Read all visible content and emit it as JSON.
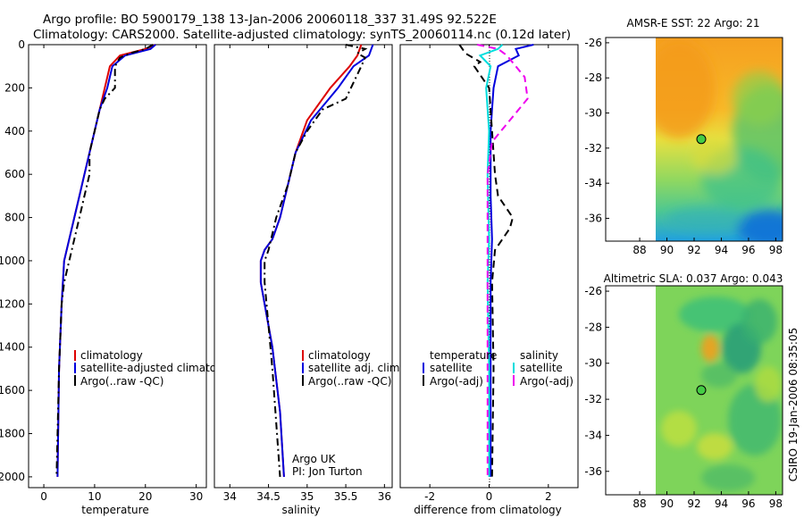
{
  "header": {
    "line1": "Argo profile: BO 5900179_138 13-Jan-2006 20060118_337 31.49S 92.522E",
    "line2": "Climatology: CARS2000. Satellite-adjusted climatology: synTS_20060114.nc (0.12d later)"
  },
  "side_label": "CSIRO 19-Jan-2006 08:35:05",
  "colors": {
    "red": "#dd0000",
    "blue": "#0000dd",
    "black": "#000000",
    "cyan": "#00dddd",
    "magenta": "#ee00ee"
  },
  "chart_data": [
    {
      "type": "line",
      "name": "temperature-panel",
      "xlabel": "temperature",
      "xlim": [
        -3,
        32
      ],
      "ylim": [
        2050,
        0
      ],
      "xticks": [
        0,
        10,
        20,
        30
      ],
      "yticks": [
        0,
        200,
        400,
        600,
        800,
        1000,
        1200,
        1400,
        1600,
        1800,
        2000
      ],
      "legend": [
        "climatology",
        "satellite-adjusted climatolog",
        "Argo(..raw -QC)"
      ],
      "series": [
        {
          "name": "climatology",
          "color": "red",
          "dash": "",
          "x": [
            22,
            20,
            15,
            13,
            12,
            11,
            10,
            9,
            8,
            7,
            6,
            5,
            4,
            3.5,
            3,
            2.7
          ],
          "y": [
            0,
            20,
            50,
            100,
            200,
            300,
            400,
            500,
            600,
            700,
            800,
            900,
            1000,
            1200,
            1500,
            2000
          ]
        },
        {
          "name": "satellite-adjusted climatolog",
          "color": "blue",
          "dash": "",
          "x": [
            22,
            21,
            16,
            13.5,
            12.5,
            11,
            10,
            9,
            8,
            7,
            6,
            5,
            4,
            3.5,
            3,
            2.7
          ],
          "y": [
            0,
            20,
            50,
            100,
            200,
            300,
            400,
            500,
            600,
            700,
            800,
            900,
            1000,
            1200,
            1500,
            2000
          ]
        },
        {
          "name": "Argo(..raw -QC)",
          "color": "black",
          "dash": "8,4,2,4",
          "x": [
            21.5,
            20,
            17,
            15,
            14,
            14,
            12,
            11,
            10,
            9,
            9,
            8,
            7,
            6,
            5,
            4,
            3.5,
            3,
            2.5
          ],
          "y": [
            0,
            20,
            40,
            60,
            100,
            200,
            250,
            300,
            400,
            500,
            600,
            700,
            800,
            900,
            1000,
            1100,
            1200,
            1500,
            2000
          ]
        }
      ]
    },
    {
      "type": "line",
      "name": "salinity-panel",
      "xlabel": "salinity",
      "xlim": [
        33.8,
        36.1
      ],
      "ylim": [
        2050,
        0
      ],
      "xticks": [
        34,
        34.5,
        35,
        35.5,
        36
      ],
      "legend": [
        "climatology",
        "satellite adj. clim.",
        "Argo(..raw -QC)"
      ],
      "annotation": [
        "Argo UK",
        "PI: Jon Turton"
      ],
      "series": [
        {
          "name": "climatology",
          "color": "red",
          "dash": "",
          "x": [
            35.7,
            35.65,
            35.55,
            35.3,
            35.0,
            34.85,
            34.75,
            34.65,
            34.55,
            34.45,
            34.4,
            34.4,
            34.45,
            34.55,
            34.65,
            34.7
          ],
          "y": [
            0,
            50,
            100,
            200,
            350,
            500,
            650,
            800,
            900,
            950,
            1000,
            1100,
            1200,
            1400,
            1700,
            2000
          ]
        },
        {
          "name": "satellite adj. clim.",
          "color": "blue",
          "dash": "",
          "x": [
            35.85,
            35.8,
            35.6,
            35.4,
            35.05,
            34.85,
            34.75,
            34.65,
            34.55,
            34.45,
            34.4,
            34.4,
            34.45,
            34.55,
            34.65,
            34.7
          ],
          "y": [
            0,
            50,
            100,
            200,
            350,
            500,
            650,
            800,
            900,
            950,
            1000,
            1100,
            1200,
            1400,
            1700,
            2000
          ]
        },
        {
          "name": "Argo(..raw -QC)",
          "color": "black",
          "dash": "8,4,2,4",
          "x": [
            35.5,
            35.75,
            35.65,
            35.75,
            35.7,
            35.5,
            35.2,
            35.0,
            34.85,
            34.75,
            34.6,
            34.5,
            34.45,
            34.45,
            34.55,
            34.65
          ],
          "y": [
            0,
            20,
            40,
            60,
            100,
            250,
            300,
            400,
            500,
            650,
            800,
            950,
            1000,
            1100,
            1500,
            2000
          ]
        }
      ]
    },
    {
      "type": "line",
      "name": "difference-panel",
      "xlabel": "difference from climatology",
      "xlim": [
        -3,
        3
      ],
      "ylim": [
        2050,
        0
      ],
      "xticks": [
        -2,
        0,
        2
      ],
      "legend_left_title": "temperature",
      "legend_left": [
        "satellite",
        "Argo(-adj)"
      ],
      "legend_right_title": "salinity",
      "legend_right": [
        "satellite",
        "Argo(-adj)"
      ],
      "series": [
        {
          "name": "temperature satellite",
          "color": "blue",
          "dash": "",
          "x": [
            1.5,
            0.9,
            1.0,
            0.3,
            0.15,
            0.1,
            0.05,
            0.05,
            0.05,
            0.1,
            0.05,
            0.05,
            0.05
          ],
          "y": [
            0,
            20,
            50,
            100,
            200,
            300,
            400,
            500,
            700,
            900,
            1100,
            1500,
            2000
          ]
        },
        {
          "name": "temperature Argo(-adj)",
          "color": "black",
          "dash": "8,5",
          "x": [
            -1.0,
            -0.8,
            -0.3,
            -0.5,
            0.0,
            0.1,
            0.2,
            0.3,
            0.8,
            0.7,
            0.2,
            0.1,
            0.15,
            0.1
          ],
          "y": [
            0,
            40,
            80,
            100,
            200,
            400,
            600,
            700,
            800,
            850,
            950,
            1100,
            1500,
            2000
          ]
        },
        {
          "name": "salinity satellite",
          "color": "cyan",
          "dash": "",
          "x": [
            0.45,
            0.3,
            -0.3,
            0.05,
            -0.1,
            0.0,
            -0.05,
            0.0,
            -0.05,
            0.0,
            0.0
          ],
          "y": [
            0,
            20,
            50,
            100,
            200,
            400,
            600,
            900,
            1100,
            1500,
            2000
          ]
        },
        {
          "name": "salinity Argo(-adj)",
          "color": "magenta",
          "dash": "8,5",
          "x": [
            -0.4,
            0.3,
            0.6,
            1.2,
            1.3,
            0.7,
            0.1,
            -0.05,
            -0.05,
            -0.05,
            -0.05
          ],
          "y": [
            0,
            20,
            50,
            150,
            250,
            350,
            450,
            600,
            900,
            1200,
            2000
          ]
        }
      ]
    },
    {
      "type": "heatmap",
      "name": "sst-map",
      "title": "AMSR-E SST: 22 Argo: 21",
      "xlim": [
        85.5,
        98.5
      ],
      "ylim": [
        -37.3,
        -25.7
      ],
      "xticks": [
        88,
        90,
        92,
        94,
        96,
        98
      ],
      "yticks": [
        -26,
        -28,
        -30,
        -32,
        -34,
        -36
      ],
      "data_lon_min": 90,
      "marker": {
        "lon": 92.522,
        "lat": -31.49
      }
    },
    {
      "type": "heatmap",
      "name": "sla-map",
      "title": "Altimetric SLA: 0.037 Argo: 0.043",
      "xlim": [
        85.5,
        98.5
      ],
      "ylim": [
        -37.3,
        -25.7
      ],
      "xticks": [
        88,
        90,
        92,
        94,
        96,
        98
      ],
      "yticks": [
        -26,
        -28,
        -30,
        -32,
        -34,
        -36
      ],
      "data_lon_min": 90,
      "marker": {
        "lon": 92.522,
        "lat": -31.49
      }
    }
  ]
}
